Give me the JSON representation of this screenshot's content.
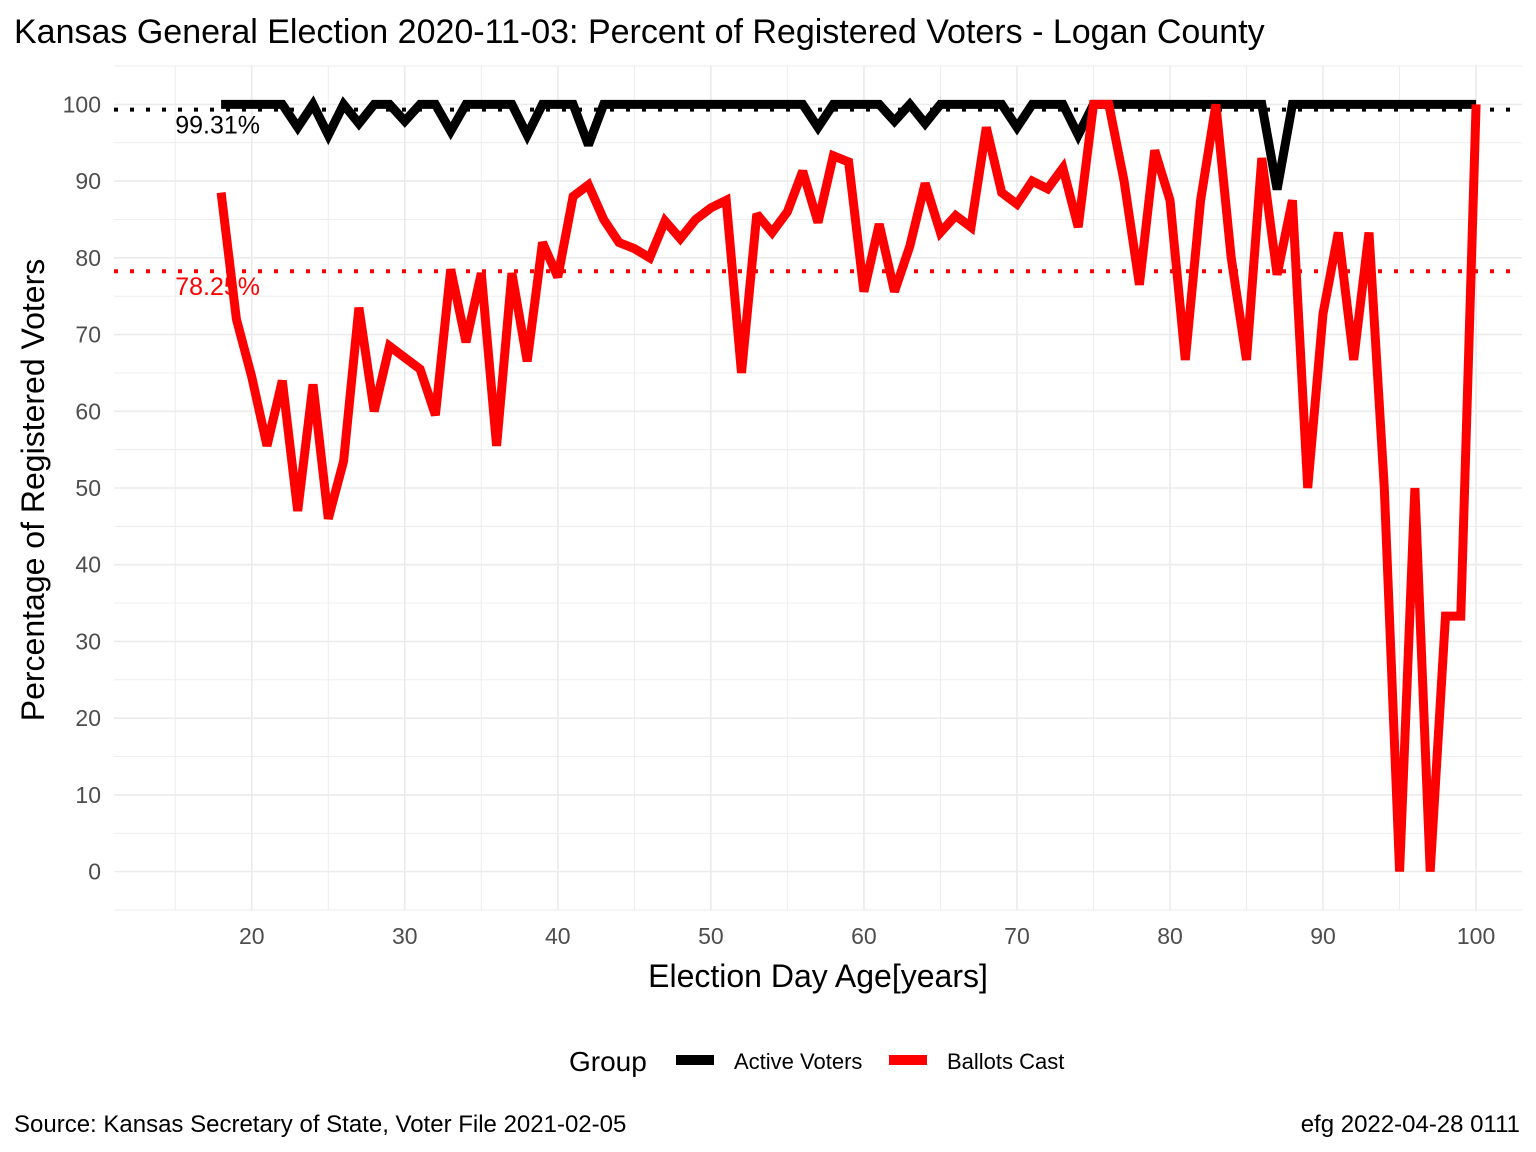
{
  "chart_data": {
    "type": "line",
    "title": "Kansas General Election 2020-11-03:  Percent of Registered Voters - Logan County",
    "xlabel": "Election Day Age[years]",
    "ylabel": "Percentage of Registered Voters",
    "xlim": [
      11,
      103
    ],
    "ylim": [
      -5,
      105
    ],
    "x_ticks": [
      20,
      30,
      40,
      50,
      60,
      70,
      80,
      90,
      100
    ],
    "y_ticks": [
      0,
      10,
      20,
      30,
      40,
      50,
      60,
      70,
      80,
      90,
      100
    ],
    "grid": true,
    "legend": {
      "title": "Group",
      "position": "bottom"
    },
    "series": [
      {
        "name": "Active Voters",
        "color": "#000000",
        "x": [
          18,
          19,
          20,
          21,
          22,
          23,
          24,
          25,
          26,
          27,
          28,
          29,
          30,
          31,
          32,
          33,
          34,
          35,
          36,
          37,
          38,
          39,
          40,
          41,
          42,
          43,
          44,
          45,
          46,
          47,
          48,
          49,
          50,
          51,
          52,
          53,
          54,
          55,
          56,
          57,
          58,
          59,
          60,
          61,
          62,
          63,
          64,
          65,
          66,
          67,
          68,
          69,
          70,
          71,
          72,
          73,
          74,
          75,
          76,
          77,
          78,
          79,
          80,
          81,
          82,
          83,
          84,
          85,
          86,
          87,
          88,
          89,
          90,
          91,
          92,
          93,
          94,
          95,
          96,
          97,
          98,
          99,
          100
        ],
        "values": [
          100,
          100,
          100,
          100,
          100,
          97,
          100,
          96,
          100,
          97.5,
          100,
          100,
          97.8,
          100,
          100,
          96.5,
          100,
          100,
          100,
          100,
          96,
          100,
          100,
          100,
          94.7,
          100,
          100,
          100,
          100,
          100,
          100,
          100,
          100,
          100,
          100,
          100,
          100,
          100,
          100,
          97,
          100,
          100,
          100,
          100,
          97.8,
          100,
          97.5,
          100,
          100,
          100,
          100,
          100,
          97,
          100,
          100,
          100,
          96,
          100,
          100,
          100,
          100,
          100,
          100,
          100,
          100,
          100,
          100,
          100,
          100,
          88.9,
          100,
          100,
          100,
          100,
          100,
          100,
          100,
          100,
          100,
          100,
          100,
          100,
          100
        ]
      },
      {
        "name": "Ballots Cast",
        "color": "#ff0000",
        "x": [
          18,
          19,
          20,
          21,
          22,
          23,
          24,
          25,
          26,
          27,
          28,
          29,
          30,
          31,
          32,
          33,
          34,
          35,
          36,
          37,
          38,
          39,
          40,
          41,
          42,
          43,
          44,
          45,
          46,
          47,
          48,
          49,
          50,
          51,
          52,
          53,
          54,
          55,
          56,
          57,
          58,
          59,
          60,
          61,
          62,
          63,
          64,
          65,
          66,
          67,
          68,
          69,
          70,
          71,
          72,
          73,
          74,
          75,
          76,
          77,
          78,
          79,
          80,
          81,
          82,
          83,
          84,
          85,
          86,
          87,
          88,
          89,
          90,
          91,
          92,
          93,
          94,
          95,
          96,
          97,
          98,
          99,
          100
        ],
        "values": [
          88.5,
          72,
          64.5,
          55.5,
          64,
          47,
          63.5,
          46,
          53.5,
          73.5,
          60,
          68.5,
          67,
          65.5,
          59.5,
          78.5,
          69,
          78,
          55.5,
          78,
          66.5,
          82,
          77.5,
          88,
          89.5,
          85,
          82,
          81.2,
          80,
          84.8,
          82.5,
          85,
          86.5,
          87.5,
          65,
          85.7,
          83.3,
          86,
          91.3,
          84.6,
          93.3,
          92.5,
          75.6,
          84.4,
          75.6,
          81.5,
          89.7,
          83.3,
          85.5,
          84,
          97,
          88.5,
          87,
          90,
          89,
          91.7,
          84,
          100,
          100,
          90,
          76.5,
          94,
          87.5,
          66.7,
          87.5,
          100,
          80,
          66.7,
          93,
          77.8,
          87.5,
          50,
          72.7,
          83.3,
          66.7,
          83.3,
          50,
          0,
          50,
          0,
          33.3,
          33.3,
          100
        ]
      }
    ],
    "reference_lines": [
      {
        "y": 99.31,
        "label": "99.31%",
        "color": "#000000"
      },
      {
        "y": 78.25,
        "label": "78.25%",
        "color": "#ff0000"
      }
    ]
  },
  "caption": {
    "source": "Source:  Kansas Secretary of State, Voter File  2021-02-05",
    "credit": "efg 2022-04-28 0111"
  }
}
